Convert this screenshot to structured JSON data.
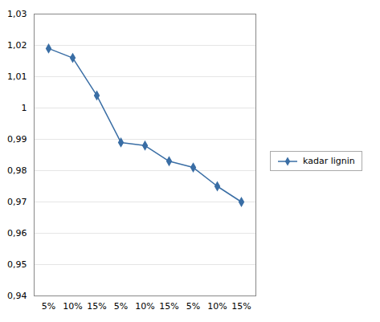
{
  "chart_data": {
    "type": "line",
    "categories": [
      "5%",
      "10%",
      "15%",
      "5%",
      "10%",
      "15%",
      "5%",
      "10%",
      "15%"
    ],
    "series": [
      {
        "name": "kadar lignin",
        "color": "#3a6ea5",
        "marker": "diamond",
        "values": [
          1.019,
          1.016,
          1.004,
          0.989,
          0.988,
          0.983,
          0.981,
          0.975,
          0.97
        ]
      }
    ],
    "ylim": [
      0.94,
      1.03
    ],
    "yticks": [
      {
        "value": 0.94,
        "label": "0,94"
      },
      {
        "value": 0.95,
        "label": "0,95"
      },
      {
        "value": 0.96,
        "label": "0,96"
      },
      {
        "value": 0.97,
        "label": "0,97"
      },
      {
        "value": 0.98,
        "label": "0,98"
      },
      {
        "value": 0.99,
        "label": "0,99"
      },
      1,
      {
        "value": 1.01,
        "label": "1,01"
      },
      {
        "value": 1.02,
        "label": "1,02"
      },
      {
        "value": 1.03,
        "label": "1,03"
      }
    ],
    "grid": true,
    "legend": "right"
  }
}
